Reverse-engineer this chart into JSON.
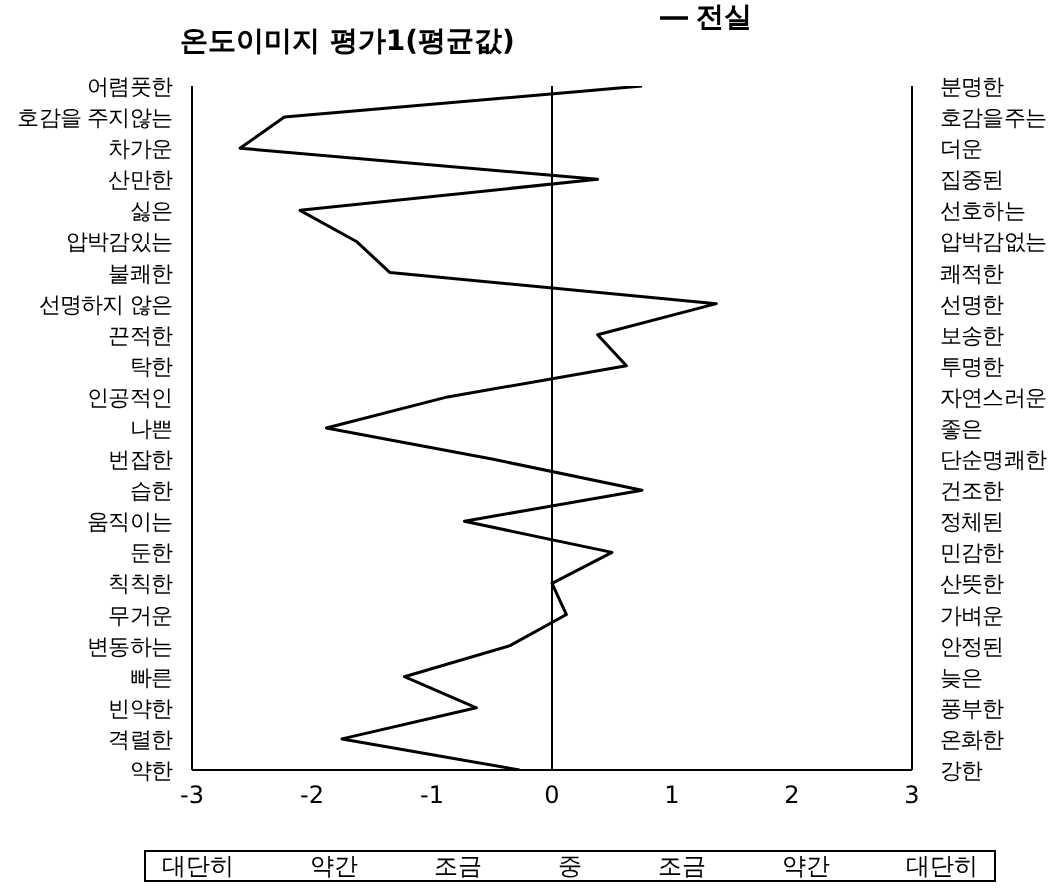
{
  "chart_data": {
    "type": "line",
    "title": "온도이미지 평가1(평균값)",
    "orientation": "horizontal",
    "categories": [
      "어렴풋한",
      "호감을 주지않는",
      "차가운",
      "산만한",
      "싫은",
      "압박감있는",
      "불쾌한",
      "선명하지 않은",
      "끈적한",
      "탁한",
      "인공적인",
      "나쁜",
      "번잡한",
      "습한",
      "움직이는",
      "둔한",
      "칙칙한",
      "무거운",
      "변동하는",
      "빠른",
      "빈약한",
      "격렬한",
      "약한"
    ],
    "y2_categories": [
      "분명한",
      "호감을주는",
      "더운",
      "집중된",
      "선호하는",
      "압박감없는",
      "쾌적한",
      "선명한",
      "보송한",
      "투명한",
      "자연스러운",
      "좋은",
      "단순명쾌한",
      "건조한",
      "정체된",
      "민감한",
      "산뜻한",
      "가벼운",
      "안정된",
      "늦은",
      "풍부한",
      "온화한",
      "강한"
    ],
    "series": [
      {
        "name": "전실",
        "color": "#000000",
        "values": [
          0.75,
          -2.23,
          -2.6,
          0.38,
          -2.1,
          -1.63,
          -1.35,
          1.37,
          0.38,
          0.62,
          -0.87,
          -1.88,
          -0.5,
          0.75,
          -0.73,
          0.5,
          0.0,
          0.12,
          -0.35,
          -1.23,
          -0.63,
          -1.75,
          -0.27
        ]
      }
    ],
    "xlim": [
      -3,
      3
    ],
    "xticks": [
      -3,
      -2,
      -1,
      0,
      1,
      2,
      3
    ],
    "ref_lines": [
      {
        "axis": "x",
        "value": 0,
        "color": "#000000"
      }
    ],
    "annotations": [
      "대단히",
      "약간",
      "조금",
      "중",
      "조금",
      "약간",
      "대단히"
    ],
    "legend": "top right",
    "marker": "none"
  }
}
